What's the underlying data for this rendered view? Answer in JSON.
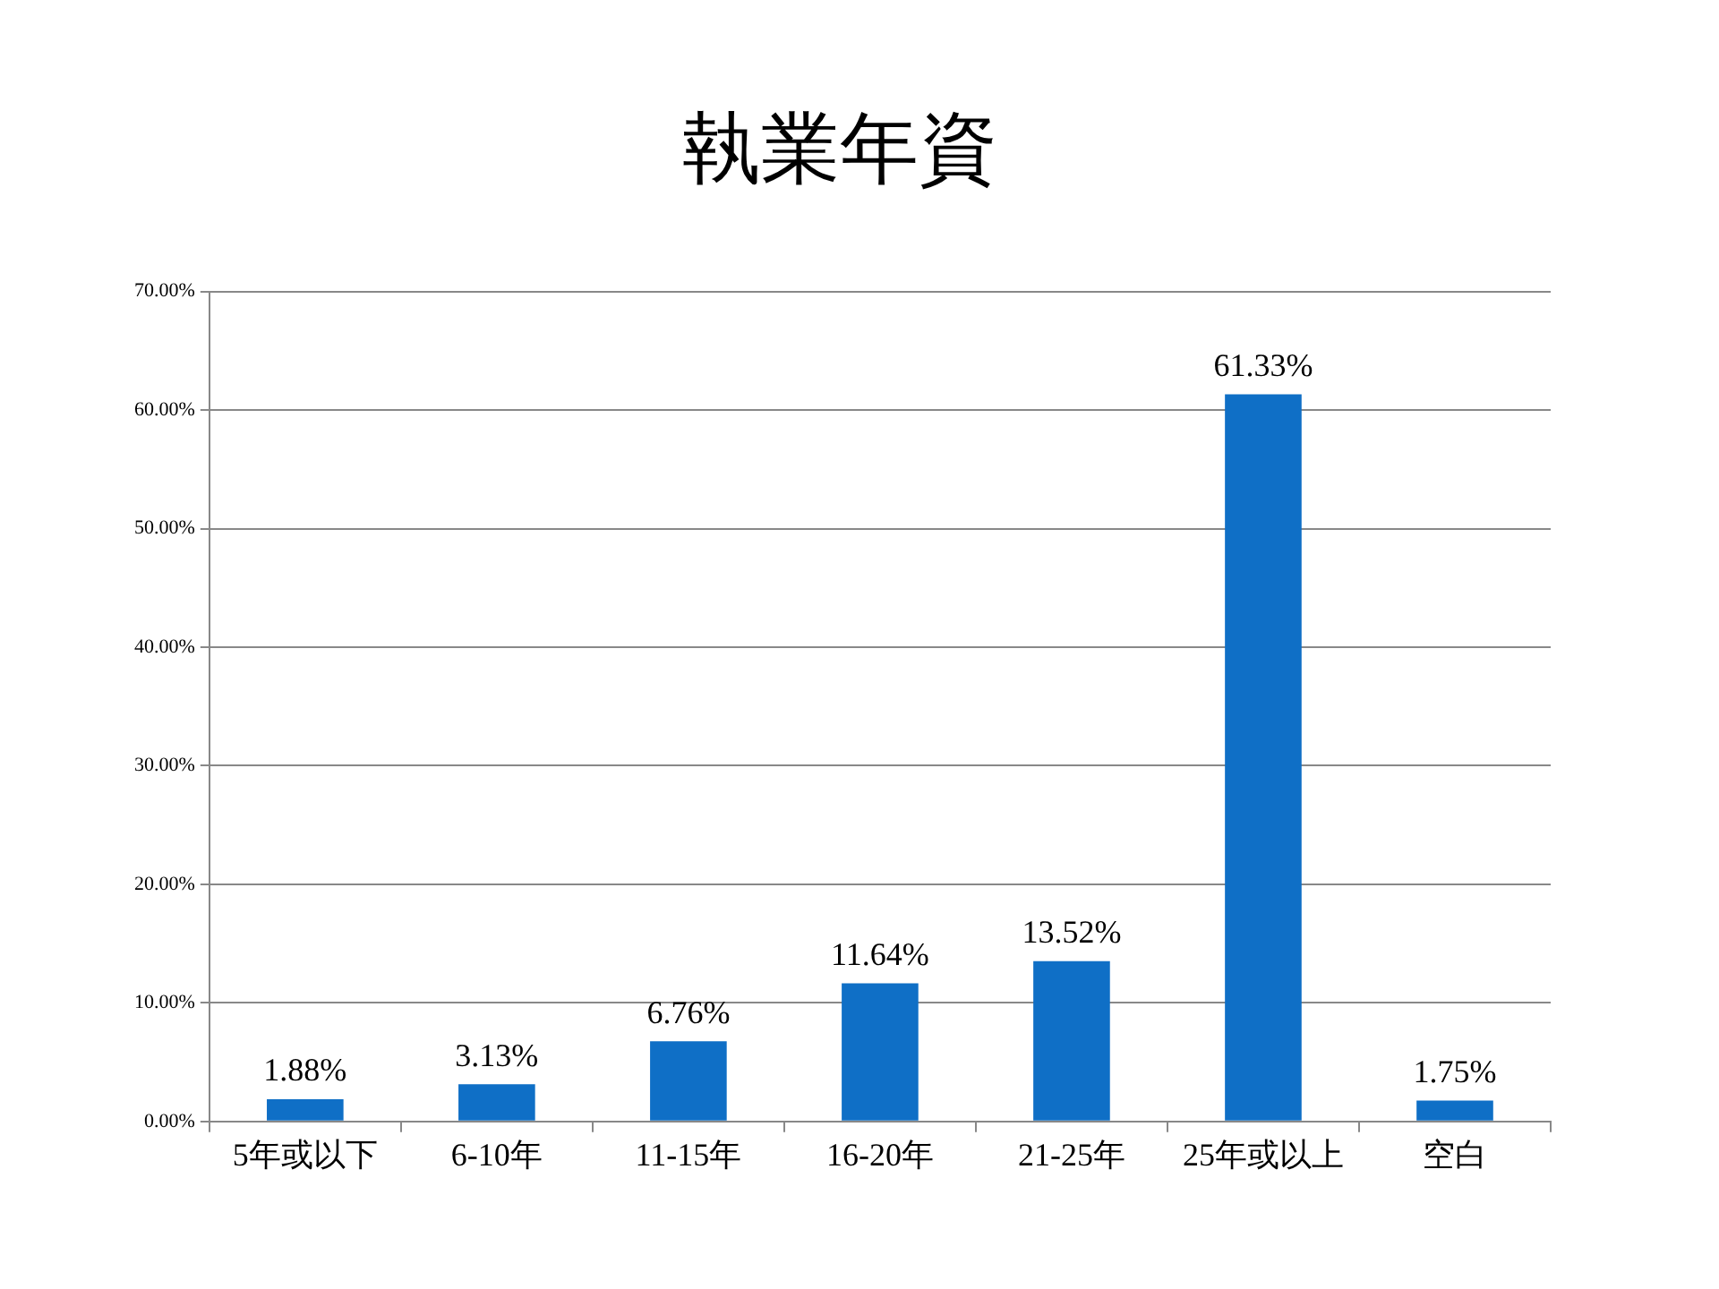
{
  "chart_data": {
    "type": "bar",
    "title": "執業年資",
    "categories": [
      "5年或以下",
      "6-10年",
      "11-15年",
      "16-20年",
      "21-25年",
      "25年或以上",
      "空白"
    ],
    "values": [
      1.88,
      3.13,
      6.76,
      11.64,
      13.52,
      61.33,
      1.75
    ],
    "value_labels": [
      "1.88%",
      "3.13%",
      "6.76%",
      "11.64%",
      "13.52%",
      "61.33%",
      "1.75%"
    ],
    "color": "#0f6fc6",
    "ylim": [
      0,
      70
    ],
    "yticks": [
      {
        "value": 0,
        "label": "0.00%"
      },
      {
        "value": 10,
        "label": "10.00%"
      },
      {
        "value": 20,
        "label": "20.00%"
      },
      {
        "value": 30,
        "label": "30.00%"
      },
      {
        "value": 40,
        "label": "40.00%"
      },
      {
        "value": 50,
        "label": "50.00%"
      },
      {
        "value": 60,
        "label": "60.00%"
      },
      {
        "value": 70,
        "label": "70.00%"
      }
    ],
    "grid": "y",
    "legend": false
  }
}
